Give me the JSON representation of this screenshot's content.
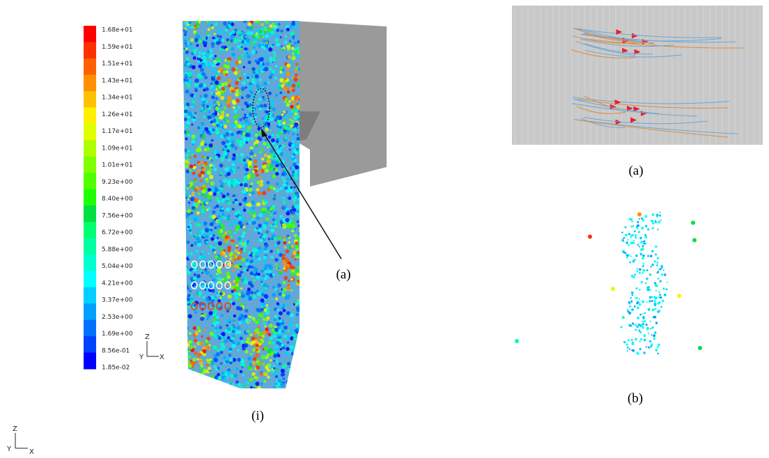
{
  "colorbar": {
    "labels": [
      "1.68e+01",
      "1.59e+01",
      "1.51e+01",
      "1.43e+01",
      "1.34e+01",
      "1.26e+01",
      "1.17e+01",
      "1.09e+01",
      "1.01e+01",
      "9.23e+00",
      "8.40e+00",
      "7.56e+00",
      "6.72e+00",
      "5.88e+00",
      "5.04e+00",
      "4.21e+00",
      "3.37e+00",
      "2.53e+00",
      "1.69e+00",
      "8.56e-01",
      "1.85e-02"
    ],
    "colors": [
      "#ff0000",
      "#ff3000",
      "#ff6000",
      "#ff9000",
      "#ffc000",
      "#fff000",
      "#e0ff00",
      "#b0ff00",
      "#80ff00",
      "#50ff00",
      "#20ff00",
      "#00e040",
      "#00ff70",
      "#00ffa0",
      "#00ffd0",
      "#00ffff",
      "#00d0ff",
      "#00a0ff",
      "#0070ff",
      "#0040ff",
      "#0000ff"
    ]
  },
  "axes_triads": [
    {
      "z": "Z",
      "y": "Y",
      "x": "X"
    },
    {
      "z": "Z",
      "y": "Y",
      "x": "X"
    }
  ],
  "annotation": {
    "label": "(a)"
  },
  "figure_i": {
    "caption": "(i)"
  },
  "panel_a": {
    "caption": "(a)"
  },
  "panel_b": {
    "caption": "(b)"
  }
}
